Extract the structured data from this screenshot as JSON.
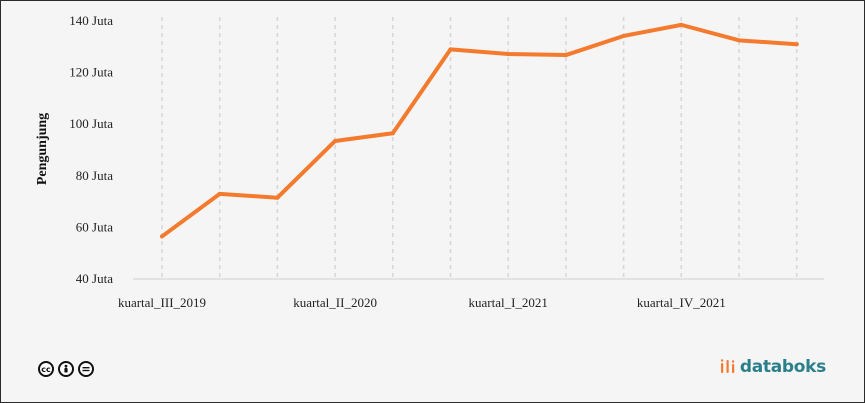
{
  "chart_data": {
    "type": "line",
    "title": "",
    "ylabel": "Pengunjung",
    "xlabel": "",
    "ylim": [
      40,
      140
    ],
    "yticks": [
      "40 Juta",
      "60 Juta",
      "80 Juta",
      "100 Juta",
      "120 Juta",
      "140 Juta"
    ],
    "ytick_values": [
      40,
      60,
      80,
      100,
      120,
      140
    ],
    "xtick_labels": [
      "kuartal_III_2019",
      "kuartal_II_2020",
      "kuartal_I_2021",
      "kuartal_IV_2021"
    ],
    "xtick_indices": [
      0,
      3,
      6,
      9
    ],
    "grid": "vertical dashed",
    "series": [
      {
        "color": "#f47a2e",
        "values": [
          56.5,
          73,
          71.5,
          93.5,
          96.5,
          129,
          127.2,
          126.8,
          134.2,
          138.5,
          132.5,
          131
        ]
      }
    ]
  },
  "license": {
    "icons": [
      "cc-icon",
      "by-icon",
      "nd-icon"
    ],
    "cc_text": "cc"
  },
  "brand": {
    "name": "databoks",
    "color": "#2a7f8a"
  }
}
